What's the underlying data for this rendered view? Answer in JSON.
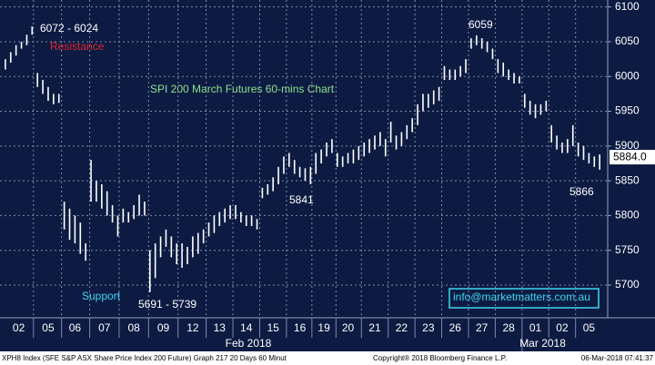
{
  "chart_data": {
    "type": "range-bar",
    "title": "SPI 200 March Futures 60-mins Chart",
    "x": [
      0,
      1,
      2,
      3,
      4,
      5,
      6,
      7,
      8,
      9,
      10,
      11,
      12,
      13,
      14,
      15,
      16,
      17,
      18,
      19,
      20,
      21,
      22,
      23,
      24,
      25,
      26,
      27,
      28,
      29,
      30,
      31,
      32,
      33,
      34,
      35,
      36,
      37,
      38,
      39,
      40,
      41,
      42,
      43,
      44,
      45,
      46,
      47,
      48,
      49,
      50,
      51,
      52,
      53,
      54,
      55,
      56,
      57,
      58,
      59,
      60,
      61,
      62,
      63,
      64,
      65,
      66,
      67,
      68,
      69,
      70,
      71,
      72,
      73,
      74,
      75,
      76,
      77,
      78,
      79,
      80,
      81,
      82,
      83,
      84,
      85,
      86,
      87,
      88,
      89,
      90,
      91,
      92,
      93,
      94,
      95,
      96,
      97,
      98,
      99,
      100,
      101,
      102,
      103,
      104,
      105,
      106,
      107,
      108,
      109,
      110,
      111
    ],
    "series": [
      {
        "color": "#ffffff",
        "high": [
          6025,
          6035,
          6045,
          6050,
          6060,
          6072,
          6005,
          5995,
          5985,
          5975,
          5975,
          5820,
          5810,
          5800,
          5790,
          5760,
          5880,
          5850,
          5845,
          5835,
          5815,
          5800,
          5810,
          5805,
          5815,
          5830,
          5820,
          5750,
          5760,
          5770,
          5780,
          5770,
          5760,
          5760,
          5755,
          5770,
          5775,
          5780,
          5790,
          5800,
          5805,
          5810,
          5815,
          5815,
          5805,
          5800,
          5800,
          5795,
          5840,
          5845,
          5855,
          5870,
          5885,
          5890,
          5880,
          5870,
          5868,
          5870,
          5890,
          5895,
          5905,
          5910,
          5890,
          5885,
          5890,
          5895,
          5900,
          5905,
          5910,
          5915,
          5920,
          5910,
          5935,
          5915,
          5920,
          5930,
          5940,
          5960,
          5975,
          5975,
          5980,
          5985,
          6015,
          6010,
          6010,
          6015,
          6025,
          6055,
          6059,
          6055,
          6050,
          6040,
          6025,
          6020,
          6010,
          6005,
          6000,
          5975,
          5965,
          5960,
          5960,
          5965,
          5930,
          5915,
          5905,
          5910,
          5930,
          5905,
          5900,
          5890,
          5885,
          5888
        ],
        "low": [
          6010,
          6020,
          6030,
          6040,
          6045,
          6060,
          5985,
          5975,
          5965,
          5960,
          5962,
          5780,
          5765,
          5760,
          5745,
          5735,
          5820,
          5820,
          5810,
          5800,
          5790,
          5770,
          5790,
          5790,
          5795,
          5800,
          5800,
          5690,
          5710,
          5740,
          5755,
          5740,
          5730,
          5725,
          5730,
          5740,
          5745,
          5760,
          5770,
          5775,
          5785,
          5790,
          5795,
          5795,
          5790,
          5785,
          5785,
          5780,
          5825,
          5830,
          5835,
          5845,
          5860,
          5870,
          5860,
          5855,
          5850,
          5845,
          5860,
          5875,
          5885,
          5890,
          5870,
          5870,
          5875,
          5875,
          5880,
          5885,
          5890,
          5895,
          5900,
          5885,
          5905,
          5895,
          5900,
          5910,
          5920,
          5930,
          5950,
          5955,
          5960,
          5965,
          5995,
          5995,
          5995,
          6000,
          6005,
          6040,
          6045,
          6040,
          6035,
          6025,
          6005,
          6000,
          5995,
          5990,
          5990,
          5955,
          5945,
          5940,
          5945,
          5950,
          5905,
          5895,
          5890,
          5890,
          5900,
          5885,
          5880,
          5875,
          5870,
          5866
        ]
      }
    ],
    "xlim": [
      -1,
      112.5
    ],
    "xticks": [
      {
        "value": 2.5,
        "label": "02"
      },
      {
        "value": 8,
        "label": "05"
      },
      {
        "value": 13,
        "label": "06"
      },
      {
        "value": 18.5,
        "label": "07"
      },
      {
        "value": 24,
        "label": "08"
      },
      {
        "value": 29.5,
        "label": "09"
      },
      {
        "value": 35,
        "label": "12"
      },
      {
        "value": 40,
        "label": "13"
      },
      {
        "value": 45,
        "label": "14"
      },
      {
        "value": 50,
        "label": "15"
      },
      {
        "value": 55,
        "label": "16"
      },
      {
        "value": 59.5,
        "label": "19"
      },
      {
        "value": 64,
        "label": "20"
      },
      {
        "value": 69,
        "label": "21"
      },
      {
        "value": 74,
        "label": "22"
      },
      {
        "value": 79,
        "label": "23"
      },
      {
        "value": 84,
        "label": "26"
      },
      {
        "value": 89,
        "label": "27"
      },
      {
        "value": 94,
        "label": "28"
      },
      {
        "value": 99,
        "label": "01"
      },
      {
        "value": 104,
        "label": "02"
      },
      {
        "value": 109,
        "label": "05"
      }
    ],
    "months": [
      "Feb 2018",
      "Mar 2018"
    ],
    "ylim": [
      5653,
      6110
    ],
    "yticks": [
      5700,
      5750,
      5800,
      5850,
      5900,
      5950,
      6000,
      6050,
      6100
    ],
    "grid": true,
    "last_price": {
      "value": 5884,
      "label": "5884.0"
    },
    "annotations": [
      "6072 - 6024",
      "Resistance",
      "6059",
      "5841",
      "5866",
      "Support",
      "5691 - 5739",
      "info@marketmatters.com.au"
    ],
    "footer": [
      "XPH8 Index (SFE S&P ASX Share Price Index 200 Future) Graph 217 20 Days 60 Minut",
      "Copyright® 2018 Bloomberg Finance L.P.",
      "06-Mar-2018 07:41:37"
    ]
  }
}
